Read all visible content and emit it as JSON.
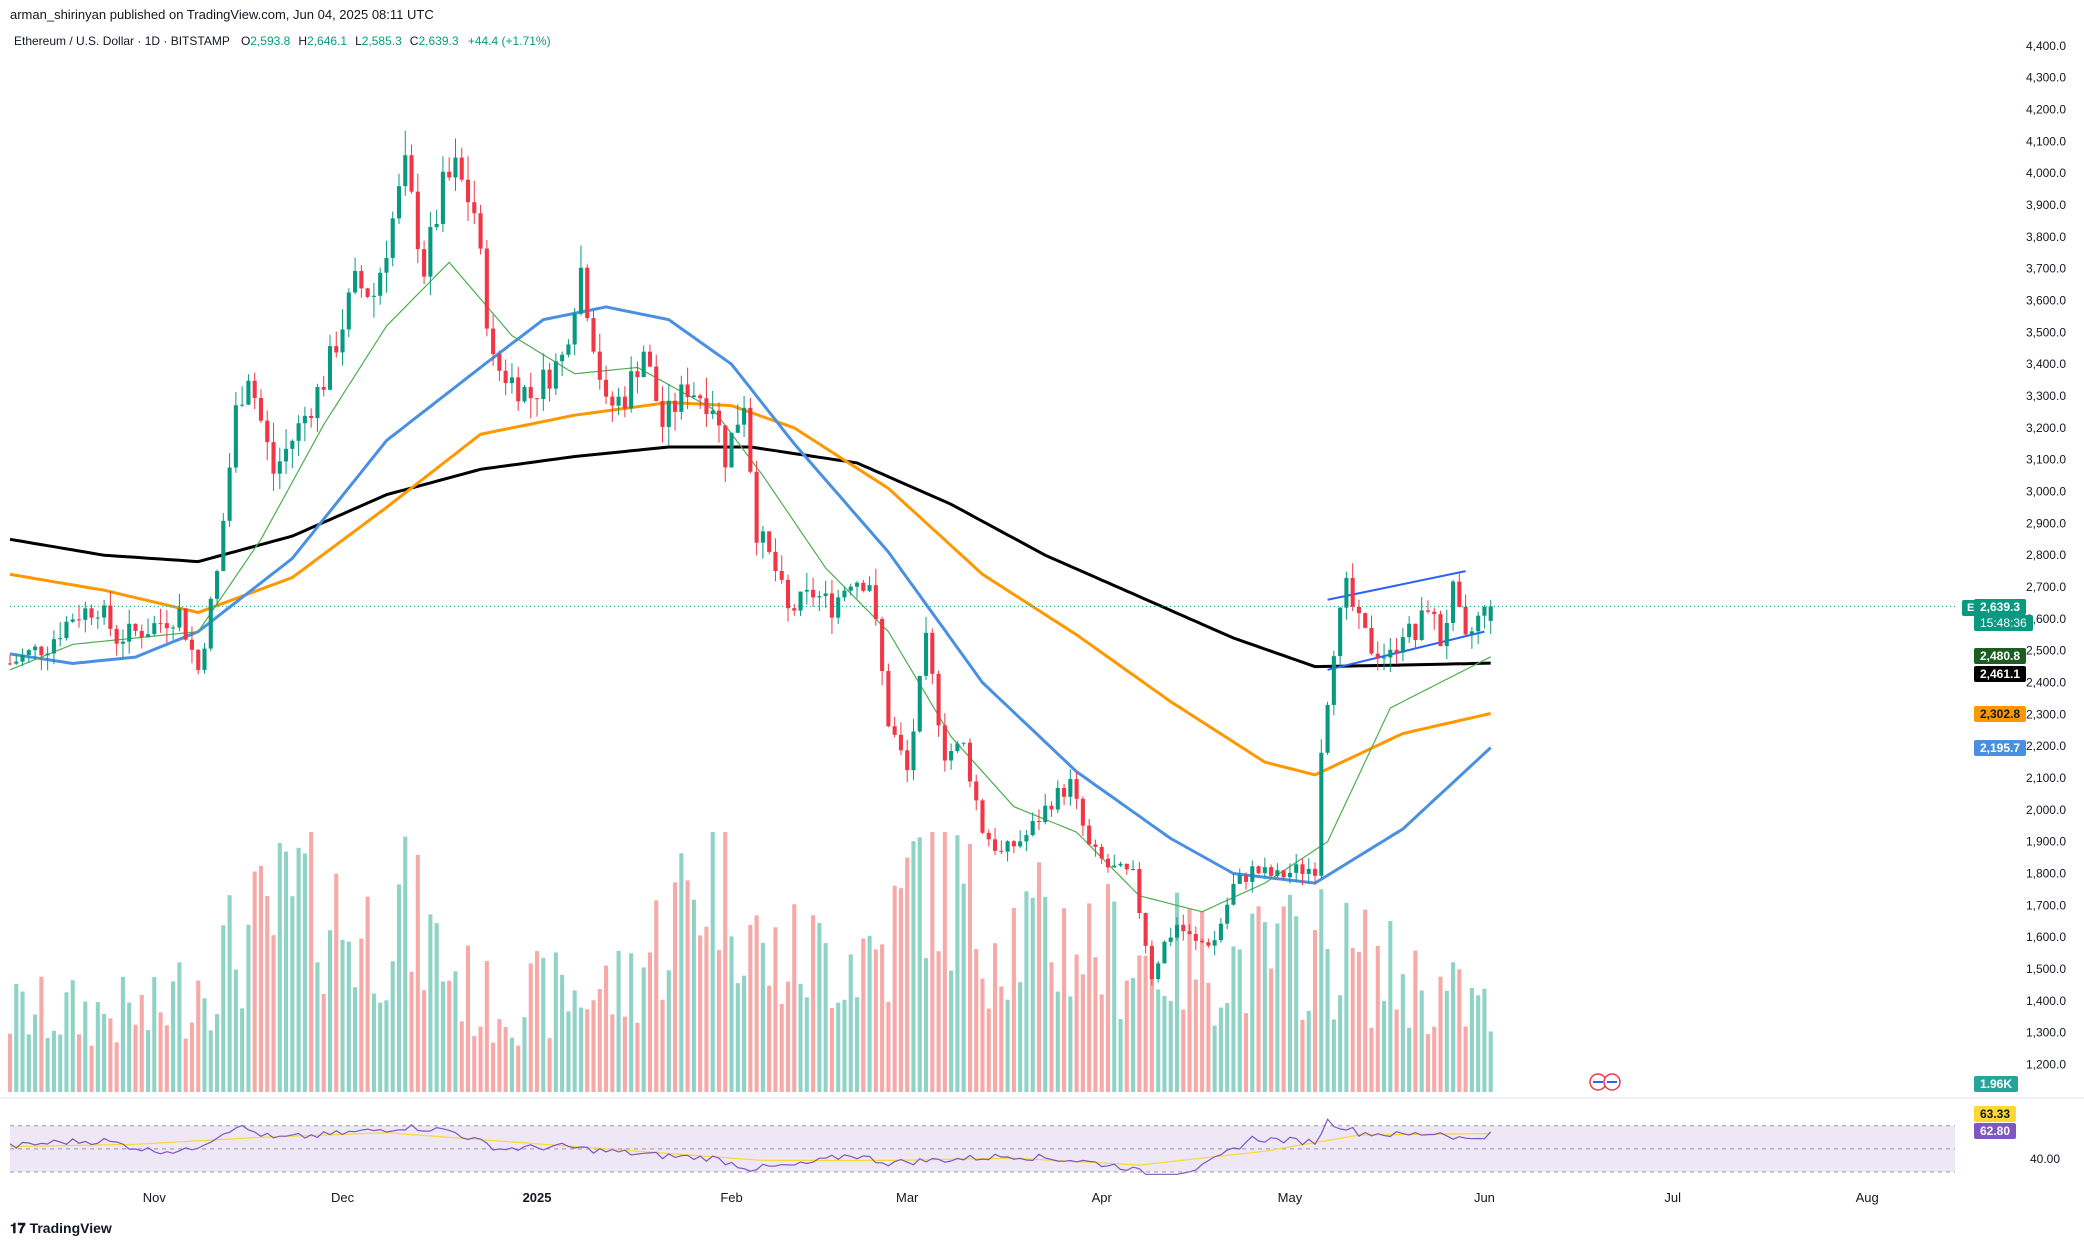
{
  "header": {
    "publisher": "arman_shirinyan published on TradingView.com, Jun 04, 2025 08:11 UTC",
    "symbol_line": "Ethereum / U.S. Dollar · 1D · BITSTAMP",
    "ohlc": [
      {
        "label": "O",
        "value": "2,593.8"
      },
      {
        "label": "H",
        "value": "2,646.1"
      },
      {
        "label": "L",
        "value": "2,585.3"
      },
      {
        "label": "C",
        "value": "2,639.3"
      }
    ],
    "change": "+44.4 (+1.71%)"
  },
  "footer": {
    "logo_text": "TradingView"
  },
  "price_tags": {
    "ticker": "ETHUSD",
    "current": "2,639.3",
    "countdown": "15:48:36",
    "ma_green": "2,480.8",
    "ma_black": "2,461.1",
    "ma_orange": "2,302.8",
    "ma_blue": "2,195.7",
    "volume": "1.96K",
    "rsi_ma": "63.33",
    "rsi": "62.80"
  },
  "colors": {
    "up": "#089981",
    "down": "#f23645",
    "vol_up": "#8fd3c7",
    "vol_down": "#f7a9a7",
    "ma_black": "#000000",
    "ma_orange": "#ff9800",
    "ma_blue": "#4a90e2",
    "ma_green": "#4caf50",
    "channel": "#2962ff",
    "rsi_line": "#7e57c2",
    "rsi_ma": "#fdd835",
    "rsi_band": "#ede7f6"
  },
  "chart_data": {
    "type": "candlestick",
    "title": "Ethereum / U.S. Dollar · 1D · BITSTAMP",
    "y_axis": {
      "ticks": [
        1200,
        1300,
        1400,
        1500,
        1600,
        1700,
        1800,
        1900,
        2000,
        2100,
        2200,
        2300,
        2400,
        2500,
        2600,
        2700,
        2800,
        2900,
        3000,
        3100,
        3200,
        3300,
        3400,
        3500,
        3600,
        3700,
        3800,
        3900,
        4000,
        4100,
        4200,
        4300,
        4400
      ],
      "tick_labels": [
        "1,200.0",
        "1,300.0",
        "1,400.0",
        "1,500.0",
        "1,600.0",
        "1,700.0",
        "1,800.0",
        "1,900.0",
        "2,000.0",
        "2,100.0",
        "2,200.0",
        "2,300.0",
        "2,400.0",
        "2,500.0",
        "2,600.0",
        "2,700.0",
        "2,800.0",
        "2,900.0",
        "3,000.0",
        "3,100.0",
        "3,200.0",
        "3,300.0",
        "3,400.0",
        "3,500.0",
        "3,600.0",
        "3,700.0",
        "3,800.0",
        "3,900.0",
        "4,000.0",
        "4,100.0",
        "4,200.0",
        "4,300.0",
        "4,400.0"
      ],
      "range": [
        1120,
        4450
      ]
    },
    "x_axis": {
      "labels": [
        {
          "day": 23,
          "text": "Nov"
        },
        {
          "day": 53,
          "text": "Dec"
        },
        {
          "day": 84,
          "text": "2025"
        },
        {
          "day": 115,
          "text": "Feb"
        },
        {
          "day": 143,
          "text": "Mar"
        },
        {
          "day": 174,
          "text": "Apr"
        },
        {
          "day": 204,
          "text": "May"
        },
        {
          "day": 235,
          "text": "Jun"
        },
        {
          "day": 265,
          "text": "Jul"
        },
        {
          "day": 296,
          "text": "Aug"
        }
      ],
      "range": [
        0,
        310
      ]
    },
    "price_keypoints": [
      {
        "day": 0,
        "close": 2460
      },
      {
        "day": 6,
        "close": 2520
      },
      {
        "day": 10,
        "close": 2610
      },
      {
        "day": 14,
        "close": 2640
      },
      {
        "day": 17,
        "close": 2540
      },
      {
        "day": 22,
        "close": 2570
      },
      {
        "day": 27,
        "close": 2620
      },
      {
        "day": 30,
        "close": 2440
      },
      {
        "day": 33,
        "close": 2740
      },
      {
        "day": 36,
        "close": 3250
      },
      {
        "day": 38,
        "close": 3380
      },
      {
        "day": 42,
        "close": 3060
      },
      {
        "day": 46,
        "close": 3200
      },
      {
        "day": 50,
        "close": 3350
      },
      {
        "day": 55,
        "close": 3650
      },
      {
        "day": 58,
        "close": 3620
      },
      {
        "day": 63,
        "close": 4010
      },
      {
        "day": 66,
        "close": 3700
      },
      {
        "day": 69,
        "close": 3950
      },
      {
        "day": 71,
        "close": 4010
      },
      {
        "day": 74,
        "close": 3880
      },
      {
        "day": 77,
        "close": 3400
      },
      {
        "day": 80,
        "close": 3350
      },
      {
        "day": 83,
        "close": 3300
      },
      {
        "day": 88,
        "close": 3420
      },
      {
        "day": 91,
        "close": 3700
      },
      {
        "day": 95,
        "close": 3260
      },
      {
        "day": 98,
        "close": 3300
      },
      {
        "day": 101,
        "close": 3450
      },
      {
        "day": 104,
        "close": 3210
      },
      {
        "day": 108,
        "close": 3330
      },
      {
        "day": 112,
        "close": 3280
      },
      {
        "day": 114,
        "close": 3110
      },
      {
        "day": 117,
        "close": 3290
      },
      {
        "day": 119,
        "close": 2880
      },
      {
        "day": 122,
        "close": 2750
      },
      {
        "day": 124,
        "close": 2620
      },
      {
        "day": 128,
        "close": 2680
      },
      {
        "day": 131,
        "close": 2640
      },
      {
        "day": 134,
        "close": 2730
      },
      {
        "day": 137,
        "close": 2720
      },
      {
        "day": 140,
        "close": 2280
      },
      {
        "day": 143,
        "close": 2120
      },
      {
        "day": 146,
        "close": 2520
      },
      {
        "day": 149,
        "close": 2180
      },
      {
        "day": 152,
        "close": 2200
      },
      {
        "day": 155,
        "close": 1940
      },
      {
        "day": 158,
        "close": 1860
      },
      {
        "day": 162,
        "close": 1920
      },
      {
        "day": 166,
        "close": 2030
      },
      {
        "day": 169,
        "close": 2080
      },
      {
        "day": 172,
        "close": 1880
      },
      {
        "day": 175,
        "close": 1820
      },
      {
        "day": 179,
        "close": 1790
      },
      {
        "day": 182,
        "close": 1480
      },
      {
        "day": 184,
        "close": 1580
      },
      {
        "day": 186,
        "close": 1640
      },
      {
        "day": 189,
        "close": 1580
      },
      {
        "day": 192,
        "close": 1590
      },
      {
        "day": 195,
        "close": 1760
      },
      {
        "day": 198,
        "close": 1810
      },
      {
        "day": 202,
        "close": 1790
      },
      {
        "day": 205,
        "close": 1810
      },
      {
        "day": 208,
        "close": 1820
      },
      {
        "day": 209,
        "close": 2200
      },
      {
        "day": 211,
        "close": 2520
      },
      {
        "day": 213,
        "close": 2690
      },
      {
        "day": 215,
        "close": 2580
      },
      {
        "day": 217,
        "close": 2510
      },
      {
        "day": 220,
        "close": 2480
      },
      {
        "day": 222,
        "close": 2570
      },
      {
        "day": 224,
        "close": 2540
      },
      {
        "day": 226,
        "close": 2650
      },
      {
        "day": 228,
        "close": 2530
      },
      {
        "day": 230,
        "close": 2680
      },
      {
        "day": 232,
        "close": 2520
      },
      {
        "day": 234,
        "close": 2600
      },
      {
        "day": 236,
        "close": 2639.3
      }
    ],
    "moving_averages": {
      "ma_200_black": [
        {
          "day": 0,
          "v": 2850
        },
        {
          "day": 15,
          "v": 2800
        },
        {
          "day": 30,
          "v": 2780
        },
        {
          "day": 45,
          "v": 2860
        },
        {
          "day": 60,
          "v": 2990
        },
        {
          "day": 75,
          "v": 3070
        },
        {
          "day": 90,
          "v": 3110
        },
        {
          "day": 105,
          "v": 3140
        },
        {
          "day": 118,
          "v": 3140
        },
        {
          "day": 135,
          "v": 3090
        },
        {
          "day": 150,
          "v": 2960
        },
        {
          "day": 165,
          "v": 2800
        },
        {
          "day": 180,
          "v": 2670
        },
        {
          "day": 195,
          "v": 2540
        },
        {
          "day": 208,
          "v": 2450
        },
        {
          "day": 222,
          "v": 2455
        },
        {
          "day": 236,
          "v": 2461.1
        }
      ],
      "ma_100_orange": [
        {
          "day": 0,
          "v": 2740
        },
        {
          "day": 15,
          "v": 2690
        },
        {
          "day": 30,
          "v": 2620
        },
        {
          "day": 45,
          "v": 2730
        },
        {
          "day": 60,
          "v": 2950
        },
        {
          "day": 75,
          "v": 3180
        },
        {
          "day": 90,
          "v": 3240
        },
        {
          "day": 105,
          "v": 3280
        },
        {
          "day": 115,
          "v": 3270
        },
        {
          "day": 125,
          "v": 3200
        },
        {
          "day": 140,
          "v": 3010
        },
        {
          "day": 155,
          "v": 2740
        },
        {
          "day": 170,
          "v": 2550
        },
        {
          "day": 185,
          "v": 2340
        },
        {
          "day": 200,
          "v": 2150
        },
        {
          "day": 208,
          "v": 2110
        },
        {
          "day": 222,
          "v": 2240
        },
        {
          "day": 236,
          "v": 2302.8
        }
      ],
      "ma_50_blue": [
        {
          "day": 0,
          "v": 2490
        },
        {
          "day": 10,
          "v": 2460
        },
        {
          "day": 20,
          "v": 2480
        },
        {
          "day": 30,
          "v": 2560
        },
        {
          "day": 45,
          "v": 2790
        },
        {
          "day": 60,
          "v": 3160
        },
        {
          "day": 75,
          "v": 3390
        },
        {
          "day": 85,
          "v": 3540
        },
        {
          "day": 95,
          "v": 3580
        },
        {
          "day": 105,
          "v": 3540
        },
        {
          "day": 115,
          "v": 3400
        },
        {
          "day": 125,
          "v": 3150
        },
        {
          "day": 140,
          "v": 2810
        },
        {
          "day": 155,
          "v": 2400
        },
        {
          "day": 170,
          "v": 2120
        },
        {
          "day": 185,
          "v": 1910
        },
        {
          "day": 195,
          "v": 1800
        },
        {
          "day": 208,
          "v": 1770
        },
        {
          "day": 222,
          "v": 1940
        },
        {
          "day": 236,
          "v": 2195.7
        }
      ],
      "ma_20_green": [
        {
          "day": 0,
          "v": 2440
        },
        {
          "day": 10,
          "v": 2520
        },
        {
          "day": 20,
          "v": 2540
        },
        {
          "day": 30,
          "v": 2560
        },
        {
          "day": 40,
          "v": 2850
        },
        {
          "day": 50,
          "v": 3210
        },
        {
          "day": 60,
          "v": 3520
        },
        {
          "day": 70,
          "v": 3720
        },
        {
          "day": 80,
          "v": 3490
        },
        {
          "day": 90,
          "v": 3370
        },
        {
          "day": 100,
          "v": 3390
        },
        {
          "day": 112,
          "v": 3260
        },
        {
          "day": 120,
          "v": 3050
        },
        {
          "day": 130,
          "v": 2760
        },
        {
          "day": 140,
          "v": 2560
        },
        {
          "day": 150,
          "v": 2230
        },
        {
          "day": 160,
          "v": 2010
        },
        {
          "day": 170,
          "v": 1930
        },
        {
          "day": 180,
          "v": 1730
        },
        {
          "day": 190,
          "v": 1680
        },
        {
          "day": 200,
          "v": 1770
        },
        {
          "day": 210,
          "v": 1900
        },
        {
          "day": 220,
          "v": 2320
        },
        {
          "day": 236,
          "v": 2480.8
        }
      ]
    },
    "channel_lines": [
      {
        "from": {
          "day": 210,
          "v": 2440
        },
        "to": {
          "day": 235,
          "v": 2560
        }
      },
      {
        "from": {
          "day": 210,
          "v": 2660
        },
        "to": {
          "day": 232,
          "v": 2750
        }
      }
    ],
    "volume_keypoints": [
      {
        "day": 22,
        "v": 1.8
      },
      {
        "day": 33,
        "v": 3.2
      },
      {
        "day": 48,
        "v": 5.0
      },
      {
        "day": 56,
        "v": 3.8
      },
      {
        "day": 62,
        "v": 4.6
      },
      {
        "day": 75,
        "v": 2.2
      },
      {
        "day": 98,
        "v": 2.6
      },
      {
        "day": 114,
        "v": 6.2
      },
      {
        "day": 120,
        "v": 3.2
      },
      {
        "day": 140,
        "v": 3.6
      },
      {
        "day": 146,
        "v": 6.0
      },
      {
        "day": 154,
        "v": 4.2
      },
      {
        "day": 182,
        "v": 3.4
      },
      {
        "day": 197,
        "v": 3.2
      },
      {
        "day": 209,
        "v": 3.6
      },
      {
        "day": 236,
        "v": 1.96
      }
    ],
    "rsi": {
      "levels": [
        70,
        50,
        30
      ],
      "tick_label": "40.00",
      "values": [
        {
          "day": 0,
          "v": 52
        },
        {
          "day": 8,
          "v": 56
        },
        {
          "day": 15,
          "v": 57
        },
        {
          "day": 22,
          "v": 49
        },
        {
          "day": 28,
          "v": 48
        },
        {
          "day": 32,
          "v": 58
        },
        {
          "day": 36,
          "v": 70
        },
        {
          "day": 42,
          "v": 59
        },
        {
          "day": 50,
          "v": 62
        },
        {
          "day": 58,
          "v": 66
        },
        {
          "day": 63,
          "v": 69
        },
        {
          "day": 70,
          "v": 66
        },
        {
          "day": 78,
          "v": 50
        },
        {
          "day": 88,
          "v": 52
        },
        {
          "day": 95,
          "v": 48
        },
        {
          "day": 104,
          "v": 44
        },
        {
          "day": 112,
          "v": 42
        },
        {
          "day": 118,
          "v": 33
        },
        {
          "day": 126,
          "v": 36
        },
        {
          "day": 134,
          "v": 45
        },
        {
          "day": 140,
          "v": 38
        },
        {
          "day": 150,
          "v": 41
        },
        {
          "day": 160,
          "v": 44
        },
        {
          "day": 170,
          "v": 40
        },
        {
          "day": 178,
          "v": 34
        },
        {
          "day": 182,
          "v": 26
        },
        {
          "day": 190,
          "v": 34
        },
        {
          "day": 198,
          "v": 59
        },
        {
          "day": 208,
          "v": 56
        },
        {
          "day": 210,
          "v": 74
        },
        {
          "day": 215,
          "v": 64
        },
        {
          "day": 222,
          "v": 62
        },
        {
          "day": 228,
          "v": 64
        },
        {
          "day": 232,
          "v": 58
        },
        {
          "day": 236,
          "v": 62.8
        }
      ],
      "ma": [
        {
          "day": 0,
          "v": 52
        },
        {
          "day": 20,
          "v": 54
        },
        {
          "day": 40,
          "v": 60
        },
        {
          "day": 60,
          "v": 64
        },
        {
          "day": 80,
          "v": 56
        },
        {
          "day": 100,
          "v": 48
        },
        {
          "day": 120,
          "v": 40
        },
        {
          "day": 140,
          "v": 40
        },
        {
          "day": 160,
          "v": 42
        },
        {
          "day": 180,
          "v": 36
        },
        {
          "day": 200,
          "v": 48
        },
        {
          "day": 215,
          "v": 62
        },
        {
          "day": 236,
          "v": 63.33
        }
      ]
    }
  }
}
